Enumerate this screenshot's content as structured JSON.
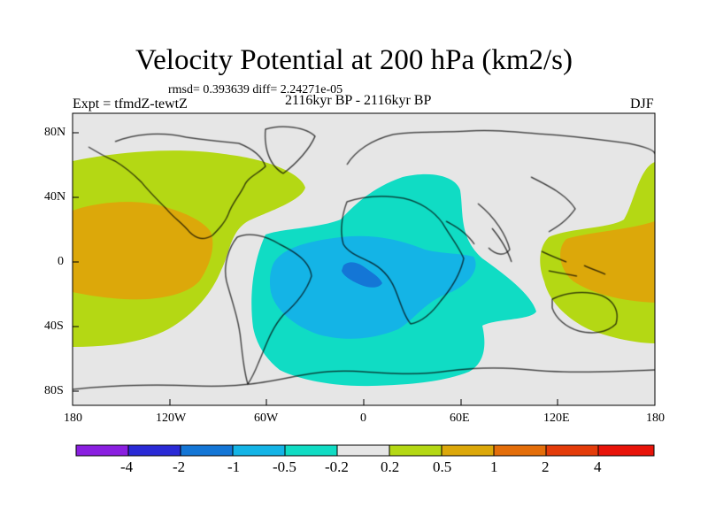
{
  "title": "Velocity Potential at 200 hPa (km2/s)",
  "stats": "rmsd= 0.393639  diff= 2.24271e-05",
  "experiment": "Expt = tfmdZ-tewtZ",
  "period": "2116kyr BP - 2116kyr BP",
  "season": "DJF",
  "x_ticks": [
    "180",
    "120W",
    "60W",
    "0",
    "60E",
    "120E",
    "180"
  ],
  "y_ticks": [
    "80N",
    "40N",
    "0",
    "40S",
    "80S"
  ],
  "colorbar": {
    "levels": [
      "-4",
      "-2",
      "-1",
      "-0.5",
      "-0.2",
      "0.2",
      "0.5",
      "1",
      "2",
      "4"
    ],
    "colors": [
      "#8a1fe0",
      "#2a2ad6",
      "#1476d6",
      "#14b4e6",
      "#10dcc4",
      "#e6e6e6",
      "#b4d814",
      "#dca80a",
      "#e46e0a",
      "#e43c0a",
      "#e8140a"
    ]
  },
  "chart_data": {
    "type": "heatmap",
    "variable": "Velocity Potential at 200 hPa",
    "units": "km2/s",
    "lon_range": [
      -180,
      180
    ],
    "lat_range": [
      -90,
      90
    ],
    "fields": [
      {
        "region": "Atlantic/Africa/South America",
        "level_range": "-0.5 to -0.2",
        "center_lon": -10,
        "center_lat": -10
      },
      {
        "region": "tropical Atlantic/Africa",
        "level_range": "-1 to -0.5",
        "center_lon": -10,
        "center_lat": -5
      },
      {
        "region": "Gulf of Guinea",
        "level_range": "-2 to -1",
        "center_lon": -3,
        "center_lat": -5
      },
      {
        "region": "eastern Pacific",
        "level_range": "0.2 to 0.5",
        "center_lon": -140,
        "center_lat": 0
      },
      {
        "region": "eastern Pacific core",
        "level_range": "0.5 to 1",
        "center_lon": -140,
        "center_lat": 5
      },
      {
        "region": "western Pacific",
        "level_range": "0.2 to 0.5",
        "center_lon": 160,
        "center_lat": 0
      },
      {
        "region": "western Pacific core",
        "level_range": "0.5 to 1",
        "center_lon": 150,
        "center_lat": -5
      }
    ]
  }
}
